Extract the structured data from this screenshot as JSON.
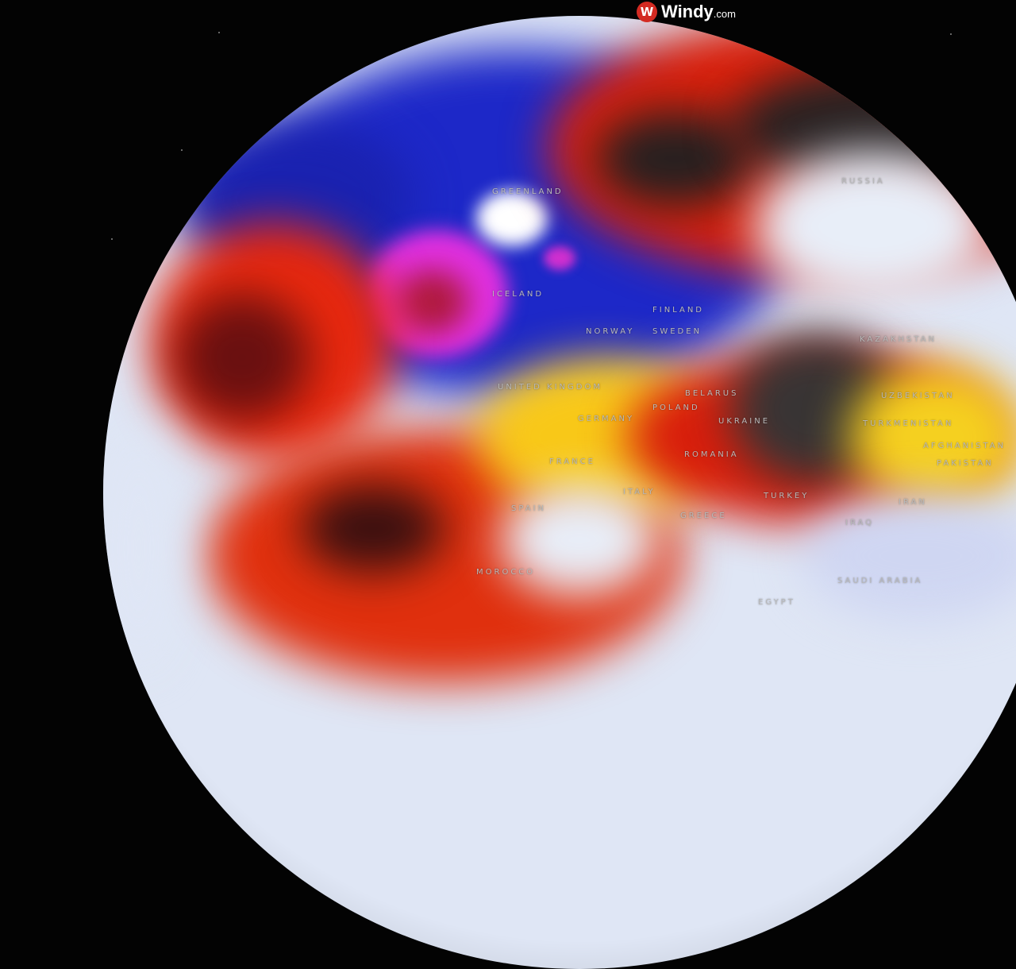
{
  "brand": {
    "name": "Windy",
    "suffix": ".com",
    "icon": "windy-logo-icon",
    "color": "#d32a22"
  },
  "map": {
    "labels": [
      "GREENLAND",
      "ICELAND",
      "FINLAND",
      "NORWAY",
      "SWEDEN",
      "UNITED KINGDOM",
      "GERMANY",
      "POLAND",
      "BELARUS",
      "UKRAINE",
      "RUSSIA",
      "KAZAKHSTAN",
      "UZBEKISTAN",
      "TURKMENISTAN",
      "AFGHANISTAN",
      "PAKISTAN",
      "ROMANIA",
      "FRANCE",
      "SPAIN",
      "ITALY",
      "GREECE",
      "TURKEY",
      "IRAN",
      "IRAQ",
      "SAUDI ARABIA",
      "EGYPT",
      "MOROCCO"
    ],
    "colors": {
      "cold": "#1c2ad0",
      "very_cold": "#e02ee0",
      "neutral": "#dfe6f5",
      "warm": "#f5e020",
      "hot": "#e02010",
      "extreme": "#303030"
    }
  }
}
